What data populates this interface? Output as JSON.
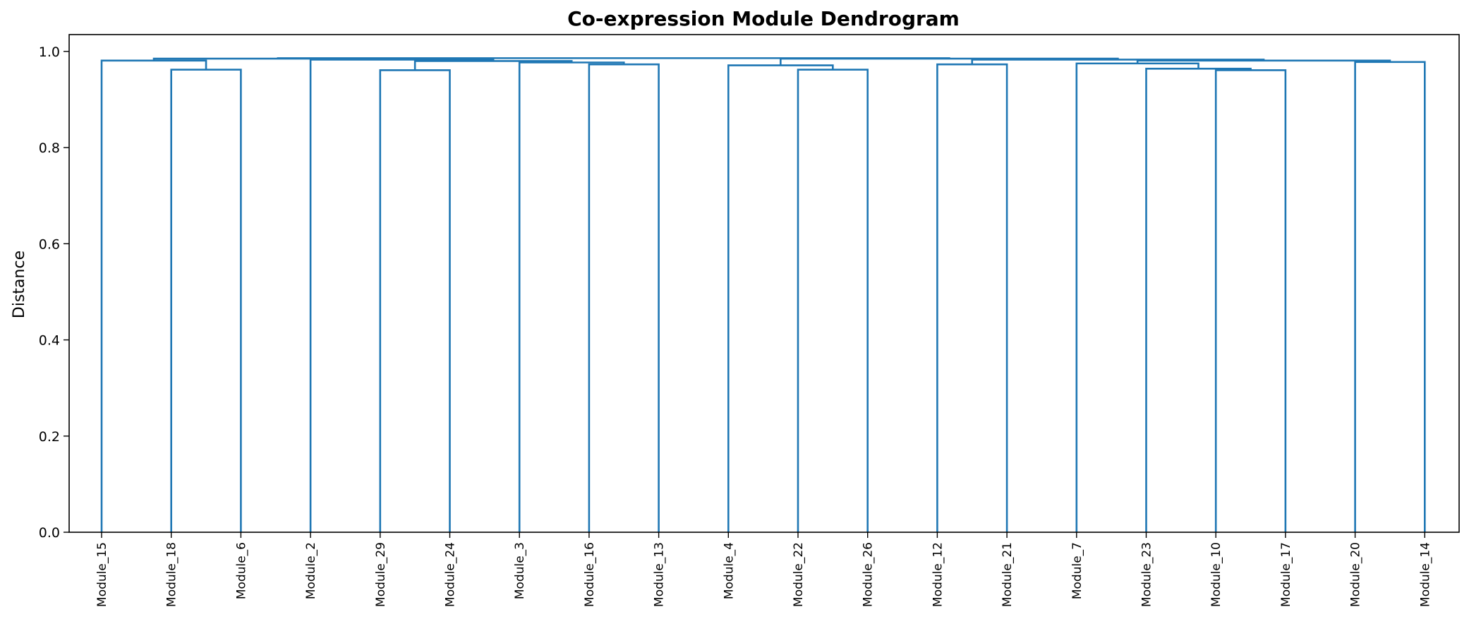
{
  "chart_data": {
    "type": "dendrogram",
    "title": "Co-expression Module Dendrogram",
    "xlabel": "",
    "ylabel": "Distance",
    "ylim": [
      0.0,
      1.035
    ],
    "yticks": [
      "0.0",
      "0.2",
      "0.4",
      "0.6",
      "0.8",
      "1.0"
    ],
    "ytick_values": [
      0.0,
      0.2,
      0.4,
      0.6,
      0.8,
      1.0
    ],
    "grid": false,
    "color": "#1f77b4",
    "leaves": [
      "Module_15",
      "Module_18",
      "Module_6",
      "Module_2",
      "Module_29",
      "Module_24",
      "Module_3",
      "Module_16",
      "Module_13",
      "Module_4",
      "Module_22",
      "Module_26",
      "Module_12",
      "Module_21",
      "Module_7",
      "Module_23",
      "Module_10",
      "Module_17",
      "Module_20",
      "Module_14"
    ],
    "merges": [
      {
        "id": "A",
        "left": "Module_18",
        "right": "Module_6",
        "height": 0.962
      },
      {
        "id": "B",
        "left": "Module_15",
        "right": "A",
        "height": 0.981
      },
      {
        "id": "C",
        "left": "Module_29",
        "right": "Module_24",
        "height": 0.961
      },
      {
        "id": "D",
        "left": "Module_16",
        "right": "Module_13",
        "height": 0.973
      },
      {
        "id": "E",
        "left": "Module_3",
        "right": "D",
        "height": 0.977
      },
      {
        "id": "F",
        "left": "C",
        "right": "E",
        "height": 0.98
      },
      {
        "id": "G",
        "left": "Module_2",
        "right": "F",
        "height": 0.983
      },
      {
        "id": "H",
        "left": "B",
        "right": "G",
        "height": 0.985
      },
      {
        "id": "I",
        "left": "Module_22",
        "right": "Module_26",
        "height": 0.962
      },
      {
        "id": "J",
        "left": "Module_4",
        "right": "I",
        "height": 0.971
      },
      {
        "id": "K",
        "left": "Module_12",
        "right": "Module_21",
        "height": 0.973
      },
      {
        "id": "L",
        "left": "Module_10",
        "right": "Module_17",
        "height": 0.961
      },
      {
        "id": "M",
        "left": "Module_23",
        "right": "L",
        "height": 0.964
      },
      {
        "id": "N",
        "left": "Module_7",
        "right": "M",
        "height": 0.975
      },
      {
        "id": "O",
        "left": "Module_20",
        "right": "Module_14",
        "height": 0.978
      },
      {
        "id": "P",
        "left": "N",
        "right": "O",
        "height": 0.981
      },
      {
        "id": "Q",
        "left": "K",
        "right": "P",
        "height": 0.983
      },
      {
        "id": "R",
        "left": "J",
        "right": "Q",
        "height": 0.985
      },
      {
        "id": "S",
        "left": "H",
        "right": "R",
        "height": 0.986
      }
    ]
  }
}
